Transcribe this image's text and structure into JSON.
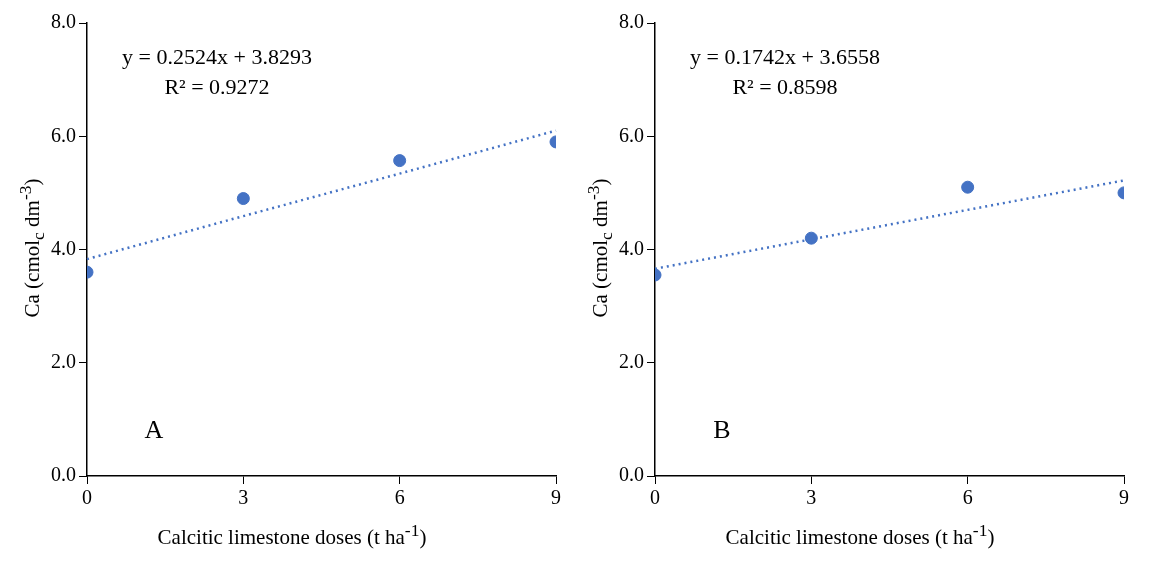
{
  "chart_data": [
    {
      "type": "scatter",
      "xlabel": "Calcitic limestone doses (t ha$^{-1}$)",
      "ylabel": "Ca (cmol$_{c}$ dm$^{-3}$)",
      "annotations": [
        "y = 0.2524x + 3.8293",
        "R² = 0.9272",
        "A"
      ],
      "x": [
        0,
        3,
        6,
        9
      ],
      "xlim": [
        0,
        9
      ],
      "xticks": [
        0,
        3,
        6,
        9
      ],
      "ylim": [
        0,
        8
      ],
      "yticks": [
        {
          "value": 0,
          "label": "0.0"
        },
        {
          "value": 2,
          "label": "2.0"
        },
        {
          "value": 4,
          "label": "4.0"
        },
        {
          "value": 6,
          "label": "6.0"
        },
        {
          "value": 8,
          "label": "8.0"
        }
      ],
      "grid": false,
      "legend": false,
      "marker": "circle",
      "series": [
        {
          "type": "scatter",
          "color": "#4472c4",
          "values": [
            3.6,
            4.9,
            5.57,
            5.9
          ]
        },
        {
          "type": "line",
          "color": "#4472c4",
          "values": [
            3.83,
            4.59,
            5.34,
            6.1
          ],
          "line_style": "dotted",
          "marker": "none"
        }
      ]
    },
    {
      "type": "scatter",
      "xlabel": "Calcitic limestone doses (t ha$^{-1}$)",
      "ylabel": "Ca (cmol$_{c}$ dm$^{-3}$)",
      "annotations": [
        "y = 0.1742x + 3.6558",
        "R² = 0.8598",
        "B"
      ],
      "x": [
        0,
        3,
        6,
        9
      ],
      "xlim": [
        0,
        9
      ],
      "xticks": [
        0,
        3,
        6,
        9
      ],
      "ylim": [
        0,
        8
      ],
      "yticks": [
        {
          "value": 0,
          "label": "0.0"
        },
        {
          "value": 2,
          "label": "2.0"
        },
        {
          "value": 4,
          "label": "4.0"
        },
        {
          "value": 6,
          "label": "6.0"
        },
        {
          "value": 8,
          "label": "8.0"
        }
      ],
      "grid": false,
      "legend": false,
      "marker": "circle",
      "series": [
        {
          "type": "scatter",
          "color": "#4472c4",
          "values": [
            3.55,
            4.2,
            5.1,
            5.0
          ]
        },
        {
          "type": "line",
          "color": "#4472c4",
          "values": [
            3.66,
            4.18,
            4.7,
            5.22
          ],
          "line_style": "dotted",
          "marker": "none"
        }
      ]
    }
  ]
}
